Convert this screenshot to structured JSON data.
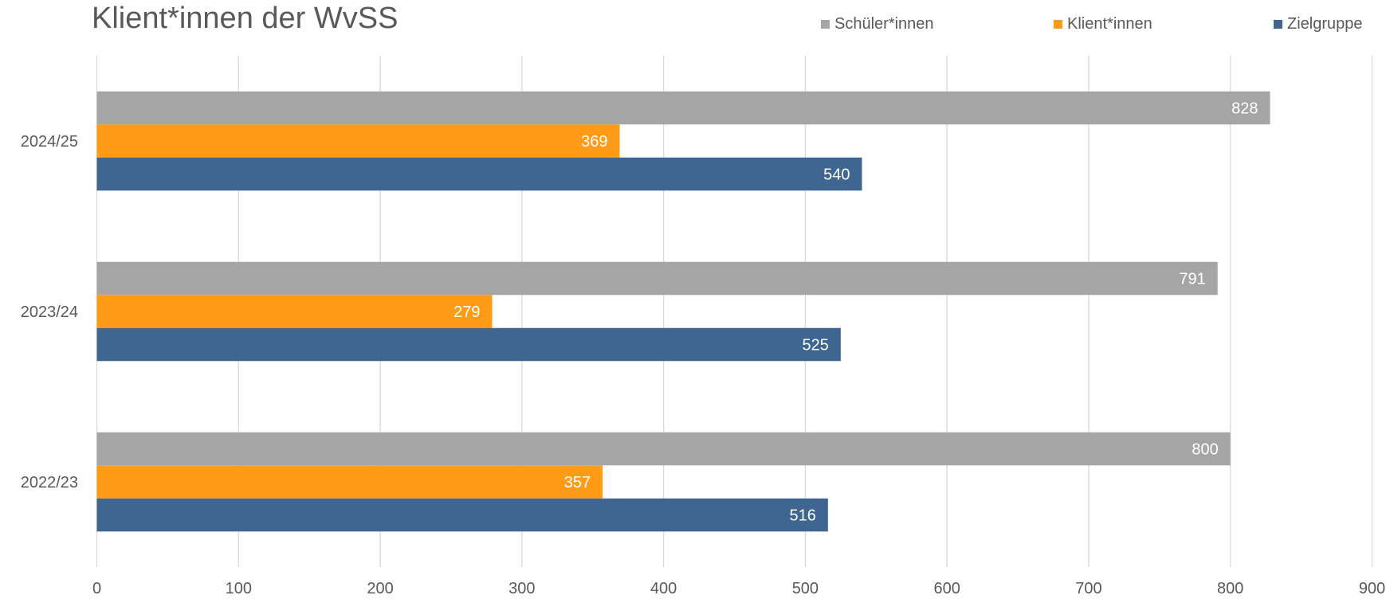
{
  "chart_data": {
    "type": "bar",
    "orientation": "horizontal",
    "title": "Klient*innen der WvSS",
    "categories": [
      "2022/23",
      "2023/24",
      "2024/25"
    ],
    "series": [
      {
        "name": "Schüler*innen",
        "color": "#A5A5A5",
        "values": [
          800,
          791,
          828
        ]
      },
      {
        "name": "Klient*innen",
        "color": "#FF9B16",
        "values": [
          357,
          279,
          369
        ]
      },
      {
        "name": "Zielgruppe",
        "color": "#3E6690",
        "values": [
          516,
          525,
          540
        ]
      }
    ],
    "xlim": [
      0,
      900
    ],
    "xticks": [
      0,
      100,
      200,
      300,
      400,
      500,
      600,
      700,
      800,
      900
    ],
    "grid": "vertical",
    "legend_position": "top-right",
    "data_labels": "inside-end"
  }
}
